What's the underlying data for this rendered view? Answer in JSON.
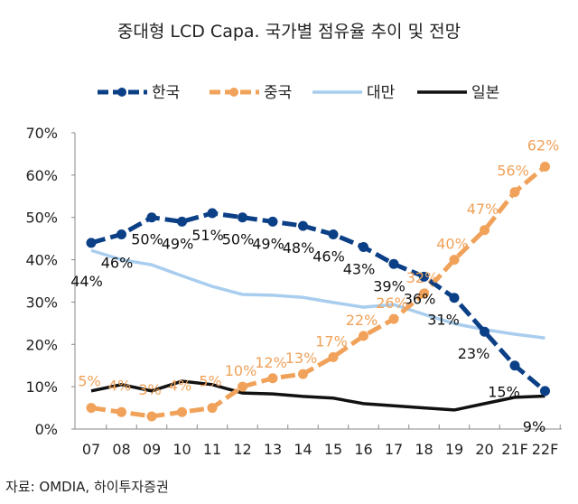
{
  "chart_data": {
    "type": "line",
    "title": "중대형 LCD Capa. 국가별 점유율 추이 및 전망",
    "categories": [
      "07",
      "08",
      "09",
      "10",
      "11",
      "12",
      "13",
      "14",
      "15",
      "16",
      "17",
      "18",
      "19",
      "20",
      "21F",
      "22F"
    ],
    "ylim": [
      0,
      70
    ],
    "yticks": [
      "0%",
      "10%",
      "20%",
      "30%",
      "40%",
      "50%",
      "60%",
      "70%"
    ],
    "legend_position": "top",
    "grid": false,
    "series": [
      {
        "name": "한국",
        "color": "#0b3f86",
        "dashed": true,
        "markers": true,
        "labels": true,
        "values": [
          44,
          46,
          50,
          49,
          51,
          50,
          49,
          48,
          46,
          43,
          39,
          36,
          31,
          23,
          15,
          9
        ]
      },
      {
        "name": "중국",
        "color": "#f0a25a",
        "dashed": true,
        "markers": true,
        "labels": true,
        "values": [
          5,
          4,
          3,
          4,
          5,
          10,
          12,
          13,
          17,
          22,
          26,
          32,
          40,
          47,
          56,
          62
        ]
      },
      {
        "name": "대만",
        "color": "#a9cdee",
        "dashed": false,
        "markers": false,
        "labels": false,
        "values": [
          42.2,
          40,
          38.8,
          36.2,
          33.7,
          31.8,
          31.6,
          31.1,
          29.9,
          28.8,
          29.4,
          27.1,
          24.9,
          23.5,
          22.4,
          21.5
        ]
      },
      {
        "name": "일본",
        "color": "#111111",
        "dashed": false,
        "markers": false,
        "labels": false,
        "values": [
          9,
          10.5,
          9,
          11.3,
          10.5,
          8.5,
          8.3,
          7.7,
          7.3,
          6,
          5.5,
          5,
          4.5,
          6,
          7.5,
          7.8
        ]
      }
    ]
  },
  "source": "자료: OMDIA, 하이투자증권"
}
